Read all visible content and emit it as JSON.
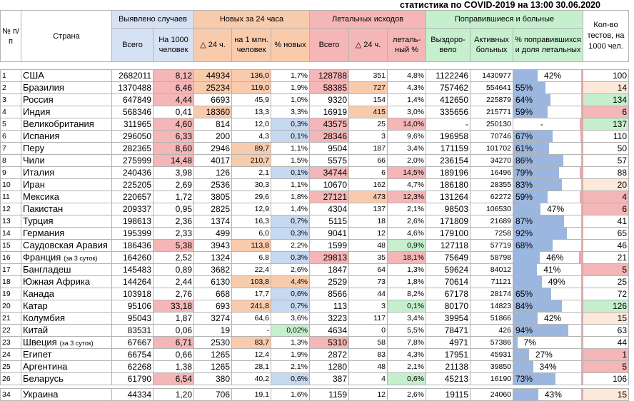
{
  "caption": "статистика по COVID-2019 на 13:00 30.06.2020",
  "headers": {
    "num": "№ п/п",
    "country": "Страна",
    "detected": "Выявлено случаев",
    "detected_total": "Всего",
    "detected_per1000": "На 1000 человек",
    "new24": "Новых за 24 часа",
    "new24_delta": "△ 24 ч.",
    "new24_permln": "на 1 млн. человек",
    "new24_pct": "% новых",
    "deaths": "Летальных исходов",
    "deaths_total": "Всего",
    "deaths_delta": "△ 24 ч.",
    "deaths_pct": "леталь-ный %",
    "recovered": "Поправившиеся и больные",
    "recovered_total": "Выздоро-вело",
    "active": "Активных больных",
    "recovered_pct": "% поправившихся и доля летальных",
    "tests": "Кол-во тестов, на 1000 чел."
  },
  "colors": {
    "perthousand_high": "#f4b6b6",
    "new24_high": "#f8cbad",
    "pct_new_high": "#c6d9f0",
    "deaths_high": "#f4b6b6",
    "deaths_delta_high": "#f8cbad",
    "lethal_high": "#f4b6b6",
    "lethal_low": "#c6efce",
    "tests_high": "#c6efce",
    "tests_mid": "#fde9d9",
    "tests_low": "#f4b6b6",
    "recovered_bar": "#9bb7e0",
    "lethal_bar": "#f1a7a7"
  },
  "rows": [
    {
      "n": "1",
      "country": "США",
      "note": "",
      "total": "2682011",
      "per1000": "8,12",
      "d24": "44934",
      "permln": "136,0",
      "pctnew": "1,7%",
      "deaths": "128788",
      "ddelta": "351",
      "lethal": "4,8%",
      "rec": "1122246",
      "active": "1430977",
      "recpct": "42%",
      "recfrac": 0.42,
      "lethfrac": 0.048,
      "tests": "100",
      "c_per1000": "perthousand_high",
      "c_d24": "new24_high",
      "c_permln": "new24_high",
      "c_pctnew": "",
      "c_deaths": "deaths_high",
      "c_ddelta": "",
      "c_lethal": "",
      "c_tests": ""
    },
    {
      "n": "2",
      "country": "Бразилия",
      "note": "",
      "total": "1370488",
      "per1000": "6,46",
      "d24": "25234",
      "permln": "119,0",
      "pctnew": "1,9%",
      "deaths": "58385",
      "ddelta": "727",
      "lethal": "4,3%",
      "rec": "757462",
      "active": "554641",
      "recpct": "55%",
      "recfrac": 0.55,
      "lethfrac": 0.043,
      "tests": "14",
      "c_per1000": "perthousand_high",
      "c_d24": "new24_high",
      "c_permln": "new24_high",
      "c_pctnew": "",
      "c_deaths": "deaths_high",
      "c_ddelta": "deaths_delta_high",
      "c_lethal": "",
      "c_tests": "tests_mid"
    },
    {
      "n": "3",
      "country": "Россия",
      "note": "",
      "total": "647849",
      "per1000": "4,44",
      "d24": "6693",
      "permln": "45,9",
      "pctnew": "1,0%",
      "deaths": "9320",
      "ddelta": "154",
      "lethal": "1,4%",
      "rec": "412650",
      "active": "225879",
      "recpct": "64%",
      "recfrac": 0.64,
      "lethfrac": 0.014,
      "tests": "134",
      "c_per1000": "perthousand_high",
      "c_d24": "",
      "c_permln": "",
      "c_pctnew": "",
      "c_deaths": "",
      "c_ddelta": "",
      "c_lethal": "",
      "c_tests": "tests_high"
    },
    {
      "n": "4",
      "country": "Индия",
      "note": "",
      "total": "568346",
      "per1000": "0,41",
      "d24": "18360",
      "permln": "13,3",
      "pctnew": "3,3%",
      "deaths": "16919",
      "ddelta": "415",
      "lethal": "3,0%",
      "rec": "335656",
      "active": "215771",
      "recpct": "59%",
      "recfrac": 0.59,
      "lethfrac": 0.03,
      "tests": "6",
      "c_per1000": "",
      "c_d24": "new24_high",
      "c_permln": "",
      "c_pctnew": "",
      "c_deaths": "",
      "c_ddelta": "deaths_delta_high",
      "c_lethal": "",
      "c_tests": "tests_low"
    },
    {
      "n": "5",
      "country": "Великобритания",
      "note": "",
      "total": "311965",
      "per1000": "4,60",
      "d24": "814",
      "permln": "12,0",
      "pctnew": "0,3%",
      "deaths": "43575",
      "ddelta": "25",
      "lethal": "14,0%",
      "rec": "-",
      "active": "250130",
      "recpct": "-",
      "recfrac": 0,
      "lethfrac": 0.14,
      "tests": "137",
      "c_per1000": "perthousand_high",
      "c_d24": "",
      "c_permln": "",
      "c_pctnew": "pct_new_high",
      "c_deaths": "deaths_high",
      "c_ddelta": "",
      "c_lethal": "lethal_high",
      "c_tests": "tests_high"
    },
    {
      "n": "6",
      "country": "Испания",
      "note": "",
      "total": "296050",
      "per1000": "6,33",
      "d24": "200",
      "permln": "4,3",
      "pctnew": "0,1%",
      "deaths": "28346",
      "ddelta": "3",
      "lethal": "9,6%",
      "rec": "196958",
      "active": "70746",
      "recpct": "67%",
      "recfrac": 0.67,
      "lethfrac": 0.096,
      "tests": "110",
      "c_per1000": "perthousand_high",
      "c_d24": "",
      "c_permln": "",
      "c_pctnew": "pct_new_high",
      "c_deaths": "deaths_high",
      "c_ddelta": "",
      "c_lethal": "",
      "c_tests": ""
    },
    {
      "n": "7",
      "country": "Перу",
      "note": "",
      "total": "282365",
      "per1000": "8,60",
      "d24": "2946",
      "permln": "89,7",
      "pctnew": "1,1%",
      "deaths": "9504",
      "ddelta": "187",
      "lethal": "3,4%",
      "rec": "171159",
      "active": "101702",
      "recpct": "61%",
      "recfrac": 0.61,
      "lethfrac": 0.034,
      "tests": "50",
      "c_per1000": "perthousand_high",
      "c_d24": "",
      "c_permln": "new24_high",
      "c_pctnew": "",
      "c_deaths": "",
      "c_ddelta": "",
      "c_lethal": "",
      "c_tests": ""
    },
    {
      "n": "8",
      "country": "Чили",
      "note": "",
      "total": "275999",
      "per1000": "14,48",
      "d24": "4017",
      "permln": "210,7",
      "pctnew": "1,5%",
      "deaths": "5575",
      "ddelta": "66",
      "lethal": "2,0%",
      "rec": "236154",
      "active": "34270",
      "recpct": "86%",
      "recfrac": 0.86,
      "lethfrac": 0.02,
      "tests": "57",
      "c_per1000": "perthousand_high",
      "c_d24": "",
      "c_permln": "new24_high",
      "c_pctnew": "",
      "c_deaths": "",
      "c_ddelta": "",
      "c_lethal": "",
      "c_tests": ""
    },
    {
      "n": "9",
      "country": "Италия",
      "note": "",
      "total": "240436",
      "per1000": "3,98",
      "d24": "126",
      "permln": "2,1",
      "pctnew": "0,1%",
      "deaths": "34744",
      "ddelta": "6",
      "lethal": "14,5%",
      "rec": "189196",
      "active": "16496",
      "recpct": "79%",
      "recfrac": 0.79,
      "lethfrac": 0.145,
      "tests": "88",
      "c_per1000": "",
      "c_d24": "",
      "c_permln": "",
      "c_pctnew": "pct_new_high",
      "c_deaths": "deaths_high",
      "c_ddelta": "",
      "c_lethal": "lethal_high",
      "c_tests": ""
    },
    {
      "n": "10",
      "country": "Иран",
      "note": "",
      "total": "225205",
      "per1000": "2,69",
      "d24": "2536",
      "permln": "30,3",
      "pctnew": "1,1%",
      "deaths": "10670",
      "ddelta": "162",
      "lethal": "4,7%",
      "rec": "186180",
      "active": "28355",
      "recpct": "83%",
      "recfrac": 0.83,
      "lethfrac": 0.047,
      "tests": "20",
      "c_per1000": "",
      "c_d24": "",
      "c_permln": "",
      "c_pctnew": "",
      "c_deaths": "",
      "c_ddelta": "",
      "c_lethal": "",
      "c_tests": "tests_mid"
    },
    {
      "n": "11",
      "country": "Мексика",
      "note": "",
      "total": "220657",
      "per1000": "1,72",
      "d24": "3805",
      "permln": "29,6",
      "pctnew": "1,8%",
      "deaths": "27121",
      "ddelta": "473",
      "lethal": "12,3%",
      "rec": "131264",
      "active": "62272",
      "recpct": "59%",
      "recfrac": 0.59,
      "lethfrac": 0.123,
      "tests": "4",
      "c_per1000": "",
      "c_d24": "",
      "c_permln": "",
      "c_pctnew": "",
      "c_deaths": "deaths_high",
      "c_ddelta": "deaths_delta_high",
      "c_lethal": "lethal_high",
      "c_tests": "tests_low"
    },
    {
      "n": "12",
      "country": "Пакистан",
      "note": "",
      "total": "209337",
      "per1000": "0,95",
      "d24": "2825",
      "permln": "12,9",
      "pctnew": "1,4%",
      "deaths": "4304",
      "ddelta": "137",
      "lethal": "2,1%",
      "rec": "98503",
      "active": "106530",
      "recpct": "47%",
      "recfrac": 0.47,
      "lethfrac": 0.021,
      "tests": "6",
      "c_per1000": "",
      "c_d24": "",
      "c_permln": "",
      "c_pctnew": "",
      "c_deaths": "",
      "c_ddelta": "",
      "c_lethal": "",
      "c_tests": "tests_low"
    },
    {
      "n": "13",
      "country": "Турция",
      "note": "",
      "total": "198613",
      "per1000": "2,36",
      "d24": "1374",
      "permln": "16,3",
      "pctnew": "0,7%",
      "deaths": "5115",
      "ddelta": "18",
      "lethal": "2,6%",
      "rec": "171809",
      "active": "21689",
      "recpct": "87%",
      "recfrac": 0.87,
      "lethfrac": 0.026,
      "tests": "41",
      "c_per1000": "",
      "c_d24": "",
      "c_permln": "",
      "c_pctnew": "pct_new_high",
      "c_deaths": "",
      "c_ddelta": "",
      "c_lethal": "",
      "c_tests": ""
    },
    {
      "n": "14",
      "country": "Германия",
      "note": "",
      "total": "195399",
      "per1000": "2,33",
      "d24": "499",
      "permln": "6,0",
      "pctnew": "0,3%",
      "deaths": "9041",
      "ddelta": "12",
      "lethal": "4,6%",
      "rec": "179100",
      "active": "7258",
      "recpct": "92%",
      "recfrac": 0.92,
      "lethfrac": 0.046,
      "tests": "65",
      "c_per1000": "",
      "c_d24": "",
      "c_permln": "",
      "c_pctnew": "pct_new_high",
      "c_deaths": "",
      "c_ddelta": "",
      "c_lethal": "",
      "c_tests": ""
    },
    {
      "n": "15",
      "country": "Саудовская Аравия",
      "note": "",
      "total": "186436",
      "per1000": "5,38",
      "d24": "3943",
      "permln": "113,8",
      "pctnew": "2,2%",
      "deaths": "1599",
      "ddelta": "48",
      "lethal": "0,9%",
      "rec": "127118",
      "active": "57719",
      "recpct": "68%",
      "recfrac": 0.68,
      "lethfrac": 0.009,
      "tests": "46",
      "c_per1000": "perthousand_high",
      "c_d24": "",
      "c_permln": "new24_high",
      "c_pctnew": "",
      "c_deaths": "",
      "c_ddelta": "",
      "c_lethal": "lethal_low",
      "c_tests": ""
    },
    {
      "n": "16",
      "country": "Франция",
      "note": "(за 3 суток)",
      "total": "164260",
      "per1000": "2,52",
      "d24": "1324",
      "permln": "6,8",
      "pctnew": "0,3%",
      "deaths": "29813",
      "ddelta": "35",
      "lethal": "18,1%",
      "rec": "75649",
      "active": "58798",
      "recpct": "46%",
      "recfrac": 0.46,
      "lethfrac": 0.181,
      "tests": "21",
      "c_per1000": "",
      "c_d24": "",
      "c_permln": "",
      "c_pctnew": "pct_new_high",
      "c_deaths": "deaths_high",
      "c_ddelta": "",
      "c_lethal": "lethal_high",
      "c_tests": ""
    },
    {
      "n": "17",
      "country": "Бангладеш",
      "note": "",
      "total": "145483",
      "per1000": "0,89",
      "d24": "3682",
      "permln": "22,4",
      "pctnew": "2,6%",
      "deaths": "1847",
      "ddelta": "64",
      "lethal": "1,3%",
      "rec": "59624",
      "active": "84012",
      "recpct": "41%",
      "recfrac": 0.41,
      "lethfrac": 0.013,
      "tests": "5",
      "c_per1000": "",
      "c_d24": "",
      "c_permln": "",
      "c_pctnew": "",
      "c_deaths": "",
      "c_ddelta": "",
      "c_lethal": "",
      "c_tests": "tests_low"
    },
    {
      "n": "18",
      "country": "Южная Африка",
      "note": "",
      "total": "144264",
      "per1000": "2,44",
      "d24": "6130",
      "permln": "103,8",
      "pctnew": "4,4%",
      "deaths": "2529",
      "ddelta": "73",
      "lethal": "1,8%",
      "rec": "70614",
      "active": "71121",
      "recpct": "49%",
      "recfrac": 0.49,
      "lethfrac": 0.018,
      "tests": "25",
      "c_per1000": "",
      "c_d24": "",
      "c_permln": "new24_high",
      "c_pctnew": "new24_high",
      "c_deaths": "",
      "c_ddelta": "",
      "c_lethal": "",
      "c_tests": ""
    },
    {
      "n": "19",
      "country": "Канада",
      "note": "",
      "total": "103918",
      "per1000": "2,76",
      "d24": "668",
      "permln": "17,7",
      "pctnew": "0,6%",
      "deaths": "8566",
      "ddelta": "44",
      "lethal": "8,2%",
      "rec": "67178",
      "active": "28174",
      "recpct": "65%",
      "recfrac": 0.65,
      "lethfrac": 0.082,
      "tests": "72",
      "c_per1000": "",
      "c_d24": "",
      "c_permln": "",
      "c_pctnew": "pct_new_high",
      "c_deaths": "",
      "c_ddelta": "",
      "c_lethal": "",
      "c_tests": ""
    },
    {
      "n": "20",
      "country": "Катар",
      "note": "",
      "total": "95106",
      "per1000": "33,18",
      "d24": "693",
      "permln": "241,8",
      "pctnew": "0,7%",
      "deaths": "113",
      "ddelta": "3",
      "lethal": "0,1%",
      "rec": "80170",
      "active": "14823",
      "recpct": "84%",
      "recfrac": 0.84,
      "lethfrac": 0.001,
      "tests": "126",
      "c_per1000": "perthousand_high",
      "c_d24": "",
      "c_permln": "new24_high",
      "c_pctnew": "pct_new_high",
      "c_deaths": "",
      "c_ddelta": "",
      "c_lethal": "lethal_low",
      "c_tests": "tests_high"
    },
    {
      "n": "21",
      "country": "Колумбия",
      "note": "",
      "total": "95043",
      "per1000": "1,87",
      "d24": "3274",
      "permln": "64,6",
      "pctnew": "3,6%",
      "deaths": "3223",
      "ddelta": "117",
      "lethal": "3,4%",
      "rec": "39954",
      "active": "51866",
      "recpct": "42%",
      "recfrac": 0.42,
      "lethfrac": 0.034,
      "tests": "15",
      "c_per1000": "",
      "c_d24": "",
      "c_permln": "",
      "c_pctnew": "",
      "c_deaths": "",
      "c_ddelta": "",
      "c_lethal": "",
      "c_tests": "tests_mid"
    },
    {
      "n": "22",
      "country": "Китай",
      "note": "",
      "total": "83531",
      "per1000": "0,06",
      "d24": "19",
      "permln": "-",
      "pctnew": "0,02%",
      "deaths": "4634",
      "ddelta": "0",
      "lethal": "5,5%",
      "rec": "78471",
      "active": "426",
      "recpct": "94%",
      "recfrac": 0.94,
      "lethfrac": 0.055,
      "tests": "63",
      "c_per1000": "",
      "c_d24": "",
      "c_permln": "",
      "c_pctnew": "lethal_low",
      "c_deaths": "",
      "c_ddelta": "",
      "c_lethal": "",
      "c_tests": ""
    },
    {
      "n": "23",
      "country": "Швеция",
      "note": "(за 3 суток)",
      "total": "67667",
      "per1000": "6,71",
      "d24": "2530",
      "permln": "83,7",
      "pctnew": "1,3%",
      "deaths": "5310",
      "ddelta": "58",
      "lethal": "7,8%",
      "rec": "4971",
      "active": "57386",
      "recpct": "7%",
      "recfrac": 0.07,
      "lethfrac": 0.078,
      "tests": "44",
      "c_per1000": "perthousand_high",
      "c_d24": "",
      "c_permln": "new24_high",
      "c_pctnew": "",
      "c_deaths": "deaths_high",
      "c_ddelta": "",
      "c_lethal": "",
      "c_tests": ""
    },
    {
      "n": "24",
      "country": "Египет",
      "note": "",
      "total": "66754",
      "per1000": "0,66",
      "d24": "1265",
      "permln": "12,4",
      "pctnew": "1,9%",
      "deaths": "2872",
      "ddelta": "83",
      "lethal": "4,3%",
      "rec": "17951",
      "active": "45931",
      "recpct": "27%",
      "recfrac": 0.27,
      "lethfrac": 0.043,
      "tests": "1",
      "c_per1000": "",
      "c_d24": "",
      "c_permln": "",
      "c_pctnew": "",
      "c_deaths": "",
      "c_ddelta": "",
      "c_lethal": "",
      "c_tests": "tests_low"
    },
    {
      "n": "25",
      "country": "Аргентина",
      "note": "",
      "total": "62268",
      "per1000": "1,38",
      "d24": "1265",
      "permln": "28,1",
      "pctnew": "2,1%",
      "deaths": "1280",
      "ddelta": "48",
      "lethal": "2,1%",
      "rec": "21138",
      "active": "39850",
      "recpct": "34%",
      "recfrac": 0.34,
      "lethfrac": 0.021,
      "tests": "5",
      "c_per1000": "",
      "c_d24": "",
      "c_permln": "",
      "c_pctnew": "",
      "c_deaths": "",
      "c_ddelta": "",
      "c_lethal": "",
      "c_tests": "tests_low"
    },
    {
      "n": "26",
      "country": "Беларусь",
      "note": "",
      "total": "61790",
      "per1000": "6,54",
      "d24": "380",
      "permln": "40,2",
      "pctnew": "0,6%",
      "deaths": "387",
      "ddelta": "4",
      "lethal": "0,6%",
      "rec": "45213",
      "active": "16190",
      "recpct": "73%",
      "recfrac": 0.73,
      "lethfrac": 0.006,
      "tests": "106",
      "c_per1000": "perthousand_high",
      "c_d24": "",
      "c_permln": "",
      "c_pctnew": "pct_new_high",
      "c_deaths": "",
      "c_ddelta": "",
      "c_lethal": "lethal_low",
      "c_tests": ""
    }
  ],
  "extra_row": {
    "n": "34",
    "country": "Украина",
    "note": "",
    "total": "44334",
    "per1000": "1,20",
    "d24": "706",
    "permln": "19,1",
    "pctnew": "1,6%",
    "deaths": "1159",
    "ddelta": "12",
    "lethal": "2,6%",
    "rec": "19115",
    "active": "24060",
    "recpct": "43%",
    "recfrac": 0.43,
    "lethfrac": 0.026,
    "tests": "15",
    "c_per1000": "",
    "c_d24": "",
    "c_permln": "",
    "c_pctnew": "",
    "c_deaths": "",
    "c_ddelta": "",
    "c_lethal": "",
    "c_tests": "tests_mid"
  }
}
